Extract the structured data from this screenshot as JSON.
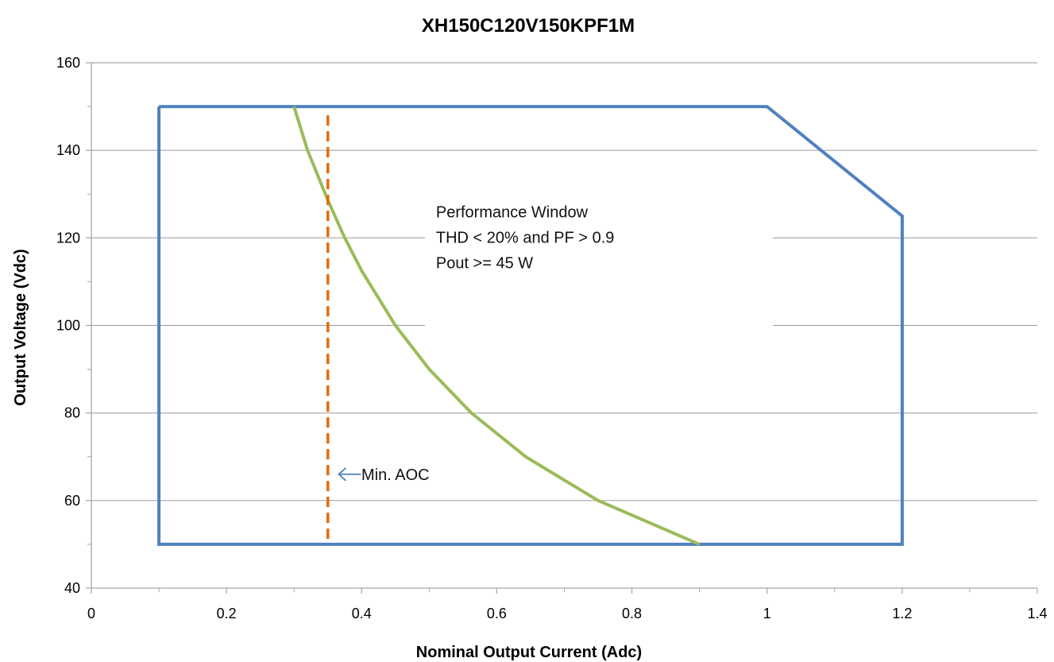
{
  "chart_data": {
    "type": "line",
    "title": "XH150C120V150KPF1M",
    "xlabel": "Nominal Output Current (Adc)",
    "ylabel": "Output Voltage (Vdc)",
    "xlim": [
      0,
      1.4
    ],
    "ylim": [
      40,
      160
    ],
    "x_ticks": [
      0,
      0.2,
      0.4,
      0.6,
      0.8,
      1,
      1.2,
      1.4
    ],
    "x_tick_labels": [
      "0",
      "0.2",
      "0.4",
      "0.6",
      "0.8",
      "1",
      "1.2",
      "1.4"
    ],
    "y_ticks": [
      40,
      60,
      80,
      100,
      120,
      140,
      160
    ],
    "y_tick_labels": [
      "40",
      "60",
      "80",
      "100",
      "120",
      "140",
      "160"
    ],
    "grid": "horizontal",
    "series": [
      {
        "color": "#4f81bd",
        "style": "solid",
        "x": [
          0.1,
          1.0,
          1.2,
          1.2,
          0.1,
          0.1
        ],
        "y": [
          150,
          150,
          125,
          50,
          50,
          150
        ]
      },
      {
        "color": "#9bbb59",
        "style": "solid",
        "x": [
          0.3,
          0.32,
          0.35,
          0.375,
          0.4,
          0.45,
          0.5,
          0.5625,
          0.643,
          0.75,
          0.9
        ],
        "y": [
          150,
          140,
          128.6,
          120,
          112.5,
          100,
          90,
          80,
          70,
          60,
          50
        ]
      },
      {
        "color": "#e46c0a",
        "style": "dashed",
        "x": [
          0.35,
          0.35
        ],
        "y": [
          148,
          50
        ]
      }
    ],
    "annotations": [
      {
        "lines": [
          "Performance Window",
          "THD < 20% and PF > 0.9",
          "Pout >= 45 W"
        ],
        "x": 0.51,
        "y": 126
      },
      {
        "text": "Min. AOC",
        "x": 0.395,
        "y": 67,
        "arrow_to": [
          0.352,
          66
        ]
      }
    ]
  }
}
